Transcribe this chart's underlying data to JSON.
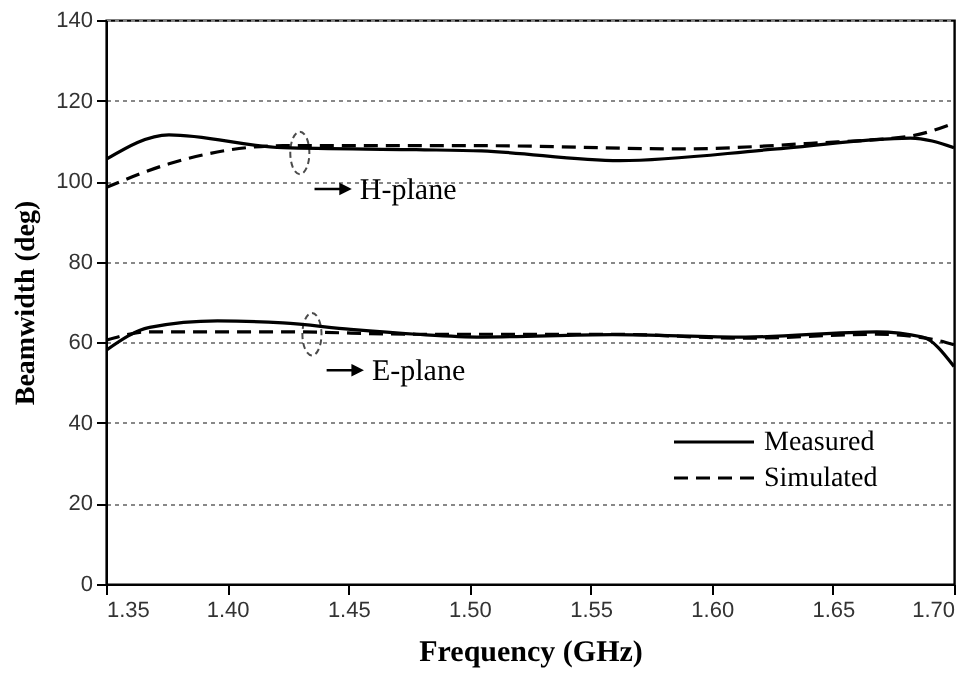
{
  "chart_data": {
    "type": "line",
    "xlabel": "Frequency (GHz)",
    "ylabel": "Beamwidth (deg)",
    "xlim": [
      1.35,
      1.7
    ],
    "ylim": [
      0,
      140
    ],
    "xticks": [
      1.35,
      {
        "value": 1.4,
        "label": "1.40"
      },
      1.45,
      {
        "value": 1.5,
        "label": "1.50"
      },
      1.55,
      {
        "value": 1.6,
        "label": "1.60"
      },
      1.65,
      {
        "value": 1.7,
        "label": "1.70"
      }
    ],
    "yticks": [
      0,
      20,
      40,
      60,
      80,
      100,
      120,
      140
    ],
    "grid": "y",
    "legend": "bottom right",
    "marker": "none",
    "series": [
      {
        "name": "Measured",
        "color": "#000000",
        "line_style": "solid",
        "x": [
          1.35,
          1.376,
          1.423,
          1.478,
          1.505,
          1.562,
          1.627,
          1.682,
          1.7
        ],
        "values": [
          105.4,
          111.5,
          108.3,
          107.8,
          107.5,
          105.1,
          108,
          110.7,
          108.3
        ]
      },
      {
        "name": "Simulated",
        "color": "#000000",
        "line_style": "dashed",
        "x": [
          1.35,
          1.376,
          1.423,
          1.505,
          1.587,
          1.641,
          1.682,
          1.7
        ],
        "values": [
          98.4,
          104.3,
          108.8,
          108.8,
          108,
          109.4,
          111.2,
          114.4
        ]
      },
      {
        "color": "#000000",
        "line_style": "solid",
        "x": [
          1.35,
          1.368,
          1.396,
          1.423,
          1.451,
          1.478,
          1.505,
          1.559,
          1.614,
          1.668,
          1.687,
          1.7
        ],
        "values": [
          58,
          63.7,
          65.3,
          64.8,
          63.2,
          62,
          61.3,
          61.9,
          61.3,
          62.6,
          61.3,
          54
        ]
      },
      {
        "color": "#000000",
        "line_style": "dashed",
        "x": [
          1.35,
          1.368,
          1.423,
          1.478,
          1.559,
          1.614,
          1.668,
          1.693,
          1.7
        ],
        "values": [
          60.5,
          62.6,
          62.6,
          62,
          62,
          61,
          62,
          60.5,
          59.4
        ]
      }
    ],
    "annotations": [
      {
        "text": "H-plane",
        "x": 1.43,
        "y": 107
      },
      {
        "text": "E-plane",
        "x": 1.435,
        "y": 62
      }
    ]
  }
}
